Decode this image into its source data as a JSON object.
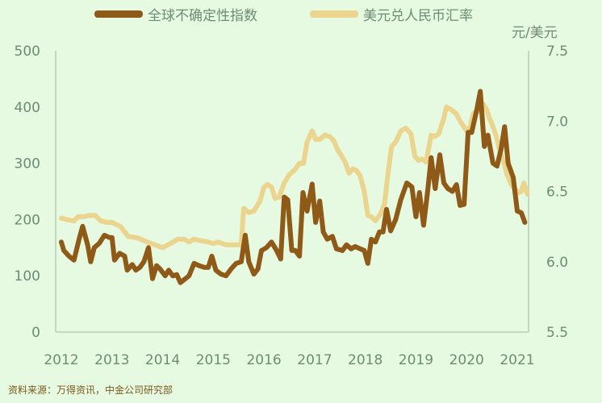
{
  "chart_data": {
    "type": "line",
    "title": "",
    "legend": {
      "placement": "top"
    },
    "grid": false,
    "x_ticks": [
      "2012",
      "2013",
      "2014",
      "2015",
      "2016",
      "2017",
      "2018",
      "2019",
      "2020",
      "2021"
    ],
    "y_left": {
      "label": "",
      "range": [
        0,
        500
      ],
      "ticks": [
        0,
        100,
        200,
        300,
        400,
        500
      ]
    },
    "y_right": {
      "label": "元/美元",
      "range": [
        5.5,
        7.5
      ],
      "ticks": [
        "5.5",
        "6.0",
        "6.5",
        "7.0",
        "7.5"
      ]
    },
    "series": [
      {
        "name": "全球不确定性指数",
        "axis": "left",
        "color": "#8f5a17",
        "points": [
          [
            2012.0,
            160
          ],
          [
            2012.05,
            145
          ],
          [
            2012.15,
            135
          ],
          [
            2012.25,
            128
          ],
          [
            2012.35,
            165
          ],
          [
            2012.42,
            188
          ],
          [
            2012.52,
            155
          ],
          [
            2012.58,
            125
          ],
          [
            2012.65,
            150
          ],
          [
            2012.75,
            158
          ],
          [
            2012.85,
            172
          ],
          [
            2012.95,
            168
          ],
          [
            2013.0,
            168
          ],
          [
            2013.05,
            128
          ],
          [
            2013.15,
            140
          ],
          [
            2013.25,
            135
          ],
          [
            2013.3,
            110
          ],
          [
            2013.4,
            120
          ],
          [
            2013.47,
            110
          ],
          [
            2013.55,
            115
          ],
          [
            2013.63,
            125
          ],
          [
            2013.72,
            150
          ],
          [
            2013.8,
            95
          ],
          [
            2013.88,
            118
          ],
          [
            2013.95,
            112
          ],
          [
            2014.05,
            100
          ],
          [
            2014.12,
            110
          ],
          [
            2014.2,
            100
          ],
          [
            2014.28,
            102
          ],
          [
            2014.35,
            88
          ],
          [
            2014.45,
            95
          ],
          [
            2014.52,
            100
          ],
          [
            2014.62,
            122
          ],
          [
            2014.72,
            118
          ],
          [
            2014.82,
            115
          ],
          [
            2014.9,
            115
          ],
          [
            2014.97,
            135
          ],
          [
            2015.05,
            110
          ],
          [
            2015.15,
            103
          ],
          [
            2015.25,
            100
          ],
          [
            2015.35,
            112
          ],
          [
            2015.45,
            122
          ],
          [
            2015.55,
            125
          ],
          [
            2015.63,
            172
          ],
          [
            2015.7,
            125
          ],
          [
            2015.8,
            103
          ],
          [
            2015.88,
            112
          ],
          [
            2015.95,
            145
          ],
          [
            2016.05,
            150
          ],
          [
            2016.15,
            160
          ],
          [
            2016.25,
            145
          ],
          [
            2016.33,
            130
          ],
          [
            2016.4,
            240
          ],
          [
            2016.47,
            235
          ],
          [
            2016.55,
            145
          ],
          [
            2016.62,
            145
          ],
          [
            2016.7,
            135
          ],
          [
            2016.77,
            248
          ],
          [
            2016.85,
            215
          ],
          [
            2016.95,
            263
          ],
          [
            2017.02,
            195
          ],
          [
            2017.1,
            233
          ],
          [
            2017.17,
            178
          ],
          [
            2017.25,
            165
          ],
          [
            2017.35,
            170
          ],
          [
            2017.43,
            148
          ],
          [
            2017.55,
            145
          ],
          [
            2017.63,
            155
          ],
          [
            2017.72,
            148
          ],
          [
            2017.8,
            152
          ],
          [
            2017.9,
            148
          ],
          [
            2017.98,
            145
          ],
          [
            2018.05,
            122
          ],
          [
            2018.12,
            165
          ],
          [
            2018.2,
            160
          ],
          [
            2018.28,
            178
          ],
          [
            2018.35,
            178
          ],
          [
            2018.42,
            218
          ],
          [
            2018.5,
            180
          ],
          [
            2018.6,
            200
          ],
          [
            2018.7,
            235
          ],
          [
            2018.82,
            265
          ],
          [
            2018.92,
            258
          ],
          [
            2019.0,
            205
          ],
          [
            2019.07,
            248
          ],
          [
            2019.15,
            190
          ],
          [
            2019.23,
            250
          ],
          [
            2019.3,
            310
          ],
          [
            2019.38,
            255
          ],
          [
            2019.47,
            315
          ],
          [
            2019.55,
            265
          ],
          [
            2019.63,
            255
          ],
          [
            2019.72,
            250
          ],
          [
            2019.8,
            262
          ],
          [
            2019.87,
            225
          ],
          [
            2019.95,
            227
          ],
          [
            2020.03,
            355
          ],
          [
            2020.1,
            355
          ],
          [
            2020.2,
            395
          ],
          [
            2020.27,
            428
          ],
          [
            2020.35,
            330
          ],
          [
            2020.42,
            350
          ],
          [
            2020.52,
            300
          ],
          [
            2020.6,
            295
          ],
          [
            2020.68,
            325
          ],
          [
            2020.75,
            365
          ],
          [
            2020.82,
            300
          ],
          [
            2020.92,
            275
          ],
          [
            2021.0,
            215
          ],
          [
            2021.08,
            212
          ],
          [
            2021.15,
            195
          ]
        ]
      },
      {
        "name": "美元兑人民币汇率",
        "axis": "right",
        "color": "#ead48e",
        "points": [
          [
            2012.0,
            6.31
          ],
          [
            2012.1,
            6.3
          ],
          [
            2012.25,
            6.29
          ],
          [
            2012.33,
            6.32
          ],
          [
            2012.45,
            6.32
          ],
          [
            2012.55,
            6.33
          ],
          [
            2012.67,
            6.33
          ],
          [
            2012.78,
            6.29
          ],
          [
            2012.9,
            6.28
          ],
          [
            2013.0,
            6.28
          ],
          [
            2013.17,
            6.25
          ],
          [
            2013.32,
            6.18
          ],
          [
            2013.5,
            6.17
          ],
          [
            2013.7,
            6.14
          ],
          [
            2013.85,
            6.12
          ],
          [
            2014.0,
            6.1
          ],
          [
            2014.15,
            6.13
          ],
          [
            2014.3,
            6.16
          ],
          [
            2014.42,
            6.16
          ],
          [
            2014.52,
            6.14
          ],
          [
            2014.62,
            6.16
          ],
          [
            2014.75,
            6.15
          ],
          [
            2014.9,
            6.14
          ],
          [
            2015.0,
            6.13
          ],
          [
            2015.1,
            6.14
          ],
          [
            2015.25,
            6.12
          ],
          [
            2015.45,
            6.12
          ],
          [
            2015.55,
            6.12
          ],
          [
            2015.6,
            6.38
          ],
          [
            2015.7,
            6.35
          ],
          [
            2015.8,
            6.36
          ],
          [
            2015.92,
            6.43
          ],
          [
            2016.0,
            6.53
          ],
          [
            2016.07,
            6.55
          ],
          [
            2016.15,
            6.53
          ],
          [
            2016.22,
            6.45
          ],
          [
            2016.3,
            6.46
          ],
          [
            2016.4,
            6.56
          ],
          [
            2016.5,
            6.62
          ],
          [
            2016.6,
            6.65
          ],
          [
            2016.7,
            6.7
          ],
          [
            2016.78,
            6.7
          ],
          [
            2016.85,
            6.85
          ],
          [
            2016.95,
            6.93
          ],
          [
            2017.02,
            6.87
          ],
          [
            2017.1,
            6.87
          ],
          [
            2017.2,
            6.9
          ],
          [
            2017.3,
            6.89
          ],
          [
            2017.38,
            6.86
          ],
          [
            2017.45,
            6.8
          ],
          [
            2017.52,
            6.76
          ],
          [
            2017.6,
            6.71
          ],
          [
            2017.68,
            6.63
          ],
          [
            2017.75,
            6.66
          ],
          [
            2017.82,
            6.65
          ],
          [
            2017.9,
            6.61
          ],
          [
            2017.98,
            6.5
          ],
          [
            2018.05,
            6.33
          ],
          [
            2018.12,
            6.32
          ],
          [
            2018.2,
            6.29
          ],
          [
            2018.3,
            6.34
          ],
          [
            2018.38,
            6.41
          ],
          [
            2018.45,
            6.63
          ],
          [
            2018.52,
            6.82
          ],
          [
            2018.6,
            6.85
          ],
          [
            2018.7,
            6.93
          ],
          [
            2018.8,
            6.95
          ],
          [
            2018.9,
            6.91
          ],
          [
            2018.98,
            6.75
          ],
          [
            2019.05,
            6.72
          ],
          [
            2019.12,
            6.73
          ],
          [
            2019.2,
            6.71
          ],
          [
            2019.3,
            6.9
          ],
          [
            2019.37,
            6.89
          ],
          [
            2019.45,
            6.91
          ],
          [
            2019.55,
            7.02
          ],
          [
            2019.6,
            7.1
          ],
          [
            2019.7,
            7.08
          ],
          [
            2019.8,
            7.05
          ],
          [
            2019.87,
            7.0
          ],
          [
            2019.93,
            6.97
          ],
          [
            2020.0,
            6.93
          ],
          [
            2020.07,
            6.96
          ],
          [
            2020.13,
            7.05
          ],
          [
            2020.2,
            7.07
          ],
          [
            2020.27,
            7.07
          ],
          [
            2020.33,
            7.12
          ],
          [
            2020.4,
            7.08
          ],
          [
            2020.45,
            7.02
          ],
          [
            2020.5,
            6.98
          ],
          [
            2020.58,
            6.9
          ],
          [
            2020.65,
            6.8
          ],
          [
            2020.72,
            6.72
          ],
          [
            2020.8,
            6.62
          ],
          [
            2020.88,
            6.55
          ],
          [
            2020.95,
            6.52
          ],
          [
            2021.02,
            6.49
          ],
          [
            2021.08,
            6.5
          ],
          [
            2021.13,
            6.56
          ],
          [
            2021.2,
            6.48
          ]
        ]
      }
    ]
  },
  "source_note": "资料来源：万得资讯，中金公司研究部"
}
